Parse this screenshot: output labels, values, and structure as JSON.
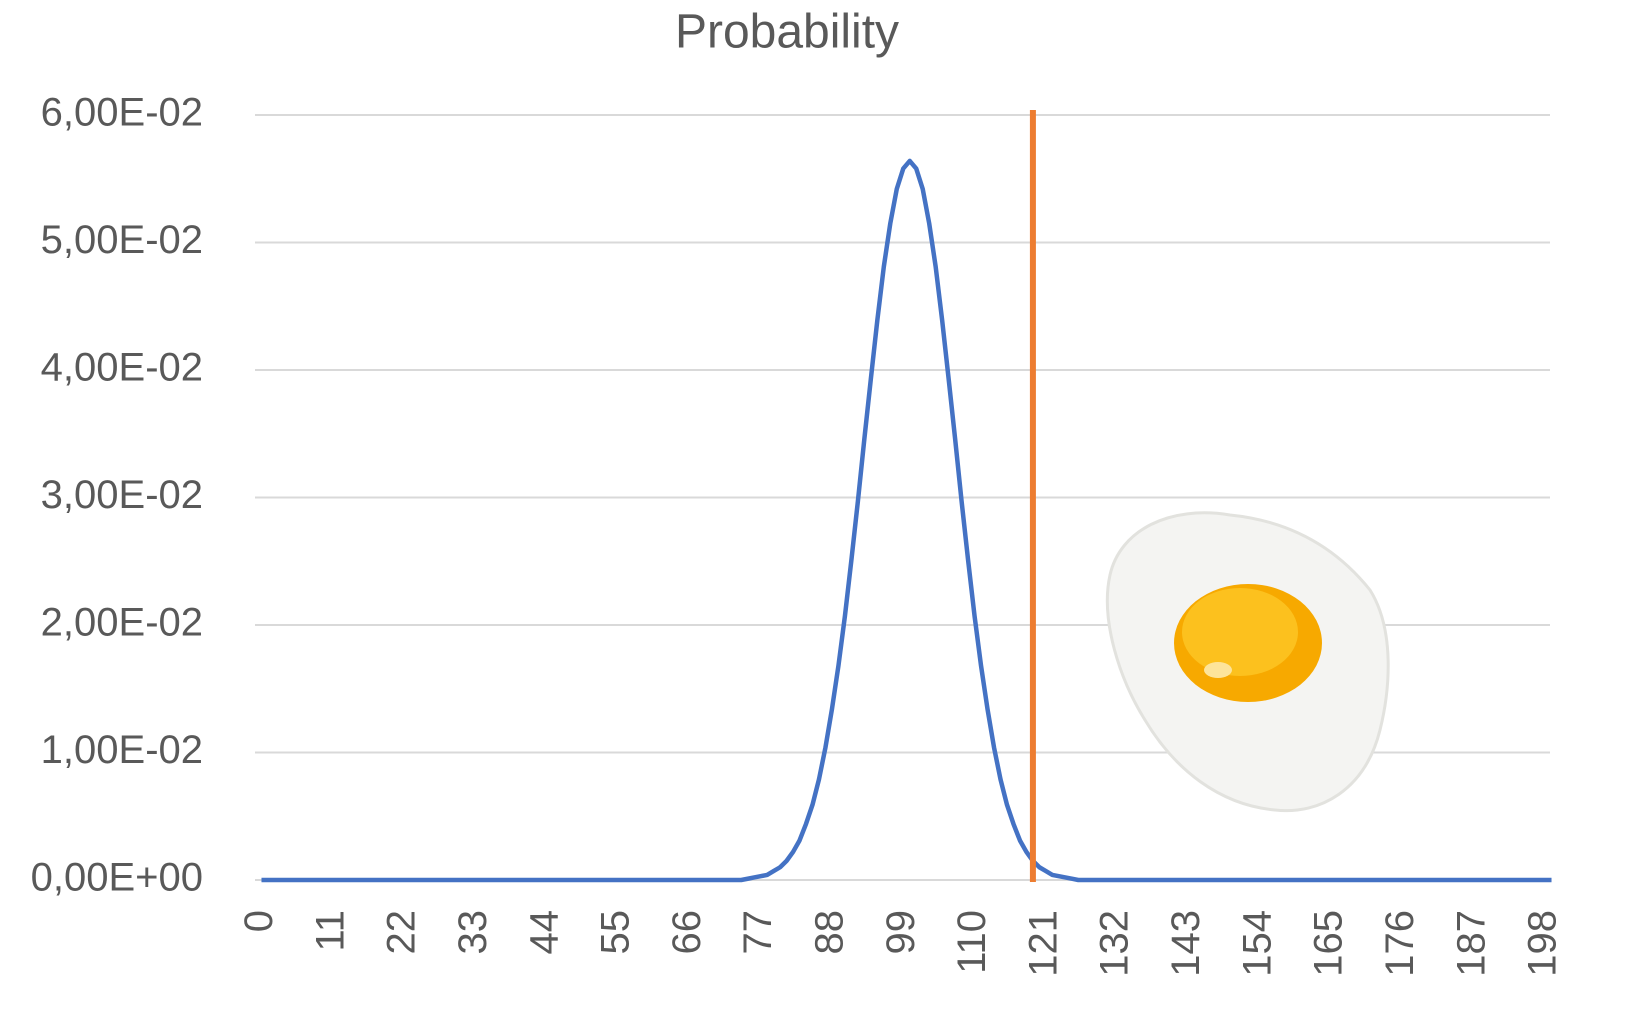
{
  "chart_data": {
    "type": "line",
    "title": "Probability",
    "x": [
      0,
      1,
      2,
      3,
      4,
      5,
      6,
      7,
      8,
      9,
      10,
      11,
      12,
      13,
      14,
      15,
      16,
      17,
      18,
      19,
      20,
      21,
      22,
      23,
      24,
      25,
      26,
      27,
      28,
      29,
      30,
      31,
      32,
      33,
      34,
      35,
      36,
      37,
      38,
      39,
      40,
      41,
      42,
      43,
      44,
      45,
      46,
      47,
      48,
      49,
      50,
      51,
      52,
      53,
      54,
      55,
      56,
      57,
      58,
      59,
      60,
      61,
      62,
      63,
      64,
      65,
      66,
      67,
      68,
      69,
      70,
      71,
      72,
      73,
      74,
      75,
      76,
      77,
      78,
      79,
      80,
      81,
      82,
      83,
      84,
      85,
      86,
      87,
      88,
      89,
      90,
      91,
      92,
      93,
      94,
      95,
      96,
      97,
      98,
      99,
      100,
      101,
      102,
      103,
      104,
      105,
      106,
      107,
      108,
      109,
      110,
      111,
      112,
      113,
      114,
      115,
      116,
      117,
      118,
      119,
      120,
      121,
      122,
      123,
      124,
      125,
      126,
      127,
      128,
      129,
      130,
      131,
      132,
      133,
      134,
      135,
      136,
      137,
      138,
      139,
      140,
      141,
      142,
      143,
      144,
      145,
      146,
      147,
      148,
      149,
      150,
      151,
      152,
      153,
      154,
      155,
      156,
      157,
      158,
      159,
      160,
      161,
      162,
      163,
      164,
      165,
      166,
      167,
      168,
      169,
      170,
      171,
      172,
      173,
      174,
      175,
      176,
      177,
      178,
      179,
      180,
      181,
      182,
      183,
      184,
      185,
      186,
      187,
      188,
      189,
      190,
      191,
      192,
      193,
      194,
      195,
      196,
      197,
      198,
      199
    ],
    "series": [
      {
        "color": "#4472c4",
        "values": [
          0,
          0,
          0,
          0,
          0,
          0,
          0,
          0,
          0,
          0,
          0,
          0,
          0,
          0,
          0,
          0,
          0,
          0,
          0,
          0,
          0,
          0,
          0,
          0,
          0,
          0,
          0,
          0,
          0,
          0,
          0,
          0,
          0,
          0,
          0,
          0,
          0,
          0,
          0,
          0,
          0,
          0,
          0,
          0,
          0,
          0,
          0,
          0,
          0,
          0,
          0,
          0,
          0,
          0,
          0,
          0,
          0,
          0,
          0,
          0,
          0,
          0,
          0,
          0,
          0,
          0,
          0,
          0,
          0,
          0,
          0,
          0,
          0,
          0,
          0,
          0.0001,
          0.0002,
          0.0003,
          0.0004,
          0.0007,
          0.001,
          0.0015,
          0.0022,
          0.0031,
          0.0044,
          0.0059,
          0.0079,
          0.0104,
          0.0134,
          0.0168,
          0.0207,
          0.0251,
          0.0297,
          0.0346,
          0.0393,
          0.0439,
          0.0481,
          0.0515,
          0.0542,
          0.0558,
          0.0564,
          0.0558,
          0.0542,
          0.0515,
          0.0481,
          0.0439,
          0.0393,
          0.0346,
          0.0297,
          0.0251,
          0.0207,
          0.0168,
          0.0134,
          0.0104,
          0.0079,
          0.0059,
          0.0044,
          0.0031,
          0.0022,
          0.0015,
          0.001,
          0.0007,
          0.0004,
          0.0003,
          0.0002,
          0.0001,
          0,
          0,
          0,
          0,
          0,
          0,
          0,
          0,
          0,
          0,
          0,
          0,
          0,
          0,
          0,
          0,
          0,
          0,
          0,
          0,
          0,
          0,
          0,
          0,
          0,
          0,
          0,
          0,
          0,
          0,
          0,
          0,
          0,
          0,
          0,
          0,
          0,
          0,
          0,
          0,
          0,
          0,
          0,
          0,
          0,
          0,
          0,
          0,
          0,
          0,
          0,
          0,
          0,
          0,
          0,
          0,
          0,
          0,
          0,
          0,
          0,
          0,
          0,
          0,
          0,
          0,
          0,
          0,
          0,
          0,
          0,
          0,
          0,
          0
        ]
      }
    ],
    "vline": {
      "x": 119,
      "color": "#ed7d31"
    },
    "xlim": [
      -1,
      200
    ],
    "xticks": [
      0,
      11,
      22,
      33,
      44,
      55,
      66,
      77,
      88,
      99,
      110,
      121,
      132,
      143,
      154,
      165,
      176,
      187,
      198
    ],
    "ylim": [
      0,
      0.06
    ],
    "yticks": [
      {
        "value": 0,
        "label": "0,00E+00"
      },
      {
        "value": 0.01,
        "label": "1,00E-02"
      },
      {
        "value": 0.02,
        "label": "2,00E-02"
      },
      {
        "value": 0.03,
        "label": "3,00E-02"
      },
      {
        "value": 0.04,
        "label": "4,00E-02"
      },
      {
        "value": 0.05,
        "label": "5,00E-02"
      },
      {
        "value": 0.06,
        "label": "6,00E-02"
      }
    ],
    "grid": true
  }
}
